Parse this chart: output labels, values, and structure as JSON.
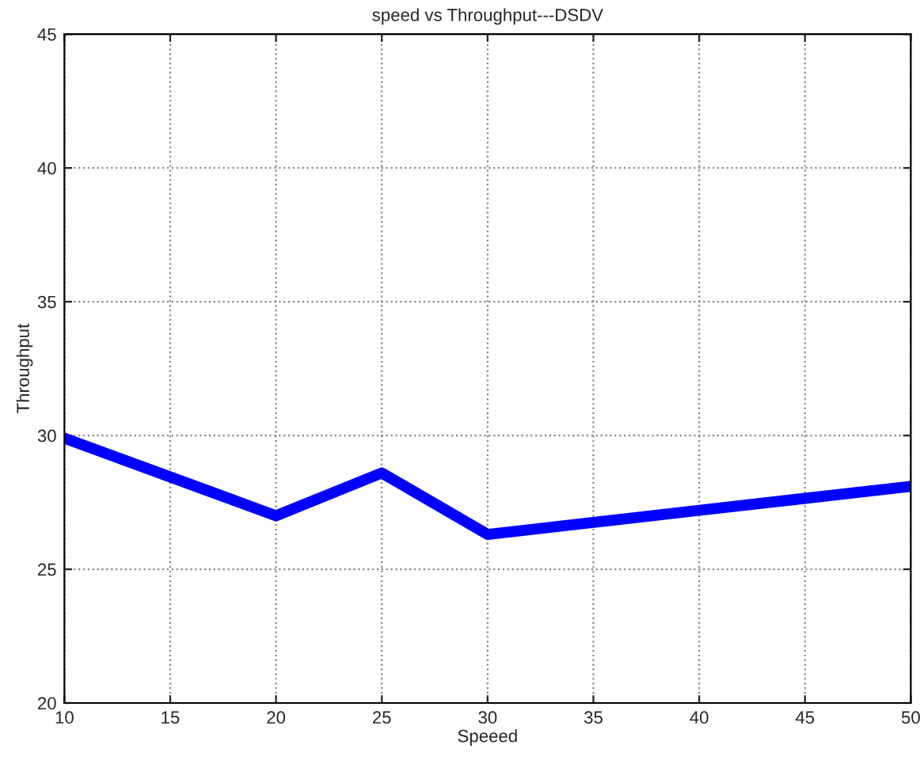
{
  "chart_data": {
    "type": "line",
    "title": "speed vs Throughput---DSDV",
    "xlabel": "Speeed",
    "ylabel": "Throughput",
    "x": [
      10,
      20,
      25,
      30,
      35,
      40,
      45,
      50
    ],
    "series": [
      {
        "color": "#0000ff",
        "values": [
          29.9,
          27.0,
          28.6,
          26.3,
          26.75,
          27.2,
          27.65,
          28.1
        ]
      }
    ],
    "xlim": [
      10,
      50
    ],
    "xticks": [
      10,
      15,
      20,
      25,
      30,
      35,
      40,
      45,
      50
    ],
    "ylim": [
      20,
      45
    ],
    "yticks": [
      20,
      25,
      30,
      35,
      40,
      45
    ],
    "grid": true,
    "line_style": "solid",
    "marker": "none"
  }
}
